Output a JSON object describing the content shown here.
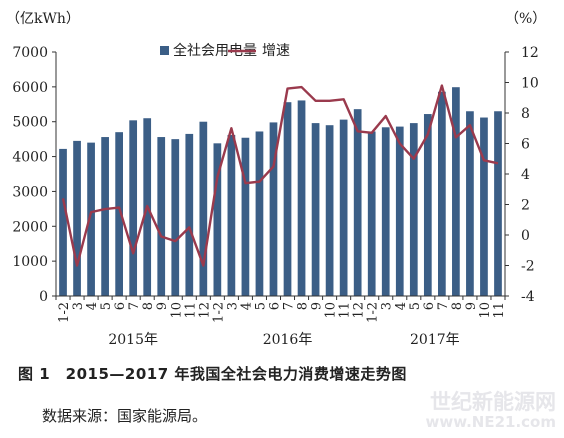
{
  "chart_data": {
    "type": "bar+line",
    "left_unit": "（亿kWh）",
    "right_unit": "（%）",
    "categories": [
      "1-2",
      "3",
      "4",
      "5",
      "6",
      "7",
      "8",
      "9",
      "10",
      "11",
      "12",
      "1-2",
      "3",
      "4",
      "5",
      "6",
      "7",
      "8",
      "9",
      "10",
      "11",
      "12",
      "1-2",
      "3",
      "4",
      "5",
      "6",
      "7",
      "8",
      "9",
      "10",
      "11"
    ],
    "year_labels": [
      {
        "label": "2015年",
        "from": 0,
        "to": 10
      },
      {
        "label": "2016年",
        "from": 11,
        "to": 21
      },
      {
        "label": "2017年",
        "from": 22,
        "to": 31
      }
    ],
    "series": [
      {
        "name": "全社会用电量",
        "type": "bar",
        "axis": "left",
        "color": "#3b5e86",
        "values": [
          4220,
          4450,
          4400,
          4560,
          4700,
          5040,
          5100,
          4560,
          4500,
          4650,
          5000,
          4380,
          4620,
          4540,
          4720,
          4980,
          5560,
          5610,
          4960,
          4900,
          5060,
          5360,
          4720,
          4840,
          4860,
          4960,
          5220,
          5860,
          5990,
          5300,
          5120,
          5300
        ]
      },
      {
        "name": "增速",
        "type": "line",
        "axis": "right",
        "color": "#9a3a4d",
        "values": [
          2.4,
          -2.0,
          1.5,
          1.7,
          1.8,
          -1.2,
          1.9,
          -0.1,
          -0.4,
          0.5,
          -2.0,
          3.8,
          7.0,
          3.4,
          3.5,
          4.5,
          9.6,
          9.7,
          8.8,
          8.8,
          8.9,
          6.8,
          6.7,
          7.8,
          6.0,
          5.0,
          6.6,
          9.8,
          6.4,
          7.2,
          4.9,
          4.7
        ]
      }
    ],
    "left_ylim": [
      0,
      7000
    ],
    "left_ticks": [
      0,
      1000,
      2000,
      3000,
      4000,
      5000,
      6000,
      7000
    ],
    "right_ylim": [
      -4,
      12
    ],
    "right_ticks": [
      -4,
      -2,
      0,
      2,
      4,
      6,
      8,
      10,
      12
    ],
    "legend_position": "top-center",
    "grid": false
  },
  "figure_caption": "图 1　2015—2017 年我国全社会电力消费增速走势图",
  "source_note": "数据来源：国家能源局。",
  "watermark": {
    "line1": "世纪新能源网",
    "line2": "www.NE21.com"
  }
}
